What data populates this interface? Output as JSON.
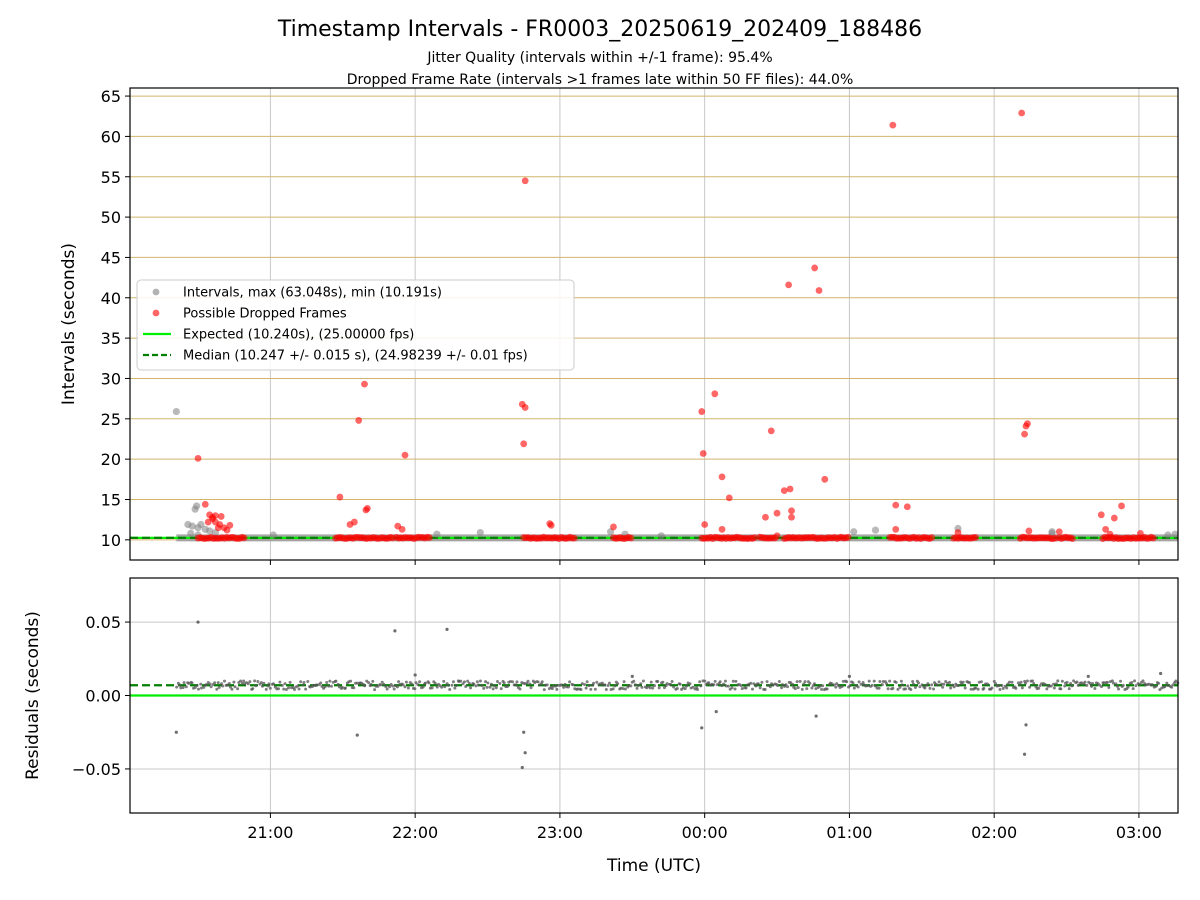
{
  "title": "Timestamp Intervals - FR0003_20250619_202409_188486",
  "subtitle_1": "Jitter Quality (intervals within +/-1 frame): 95.4%",
  "subtitle_2": "Dropped Frame Rate (intervals >1 frames late within 50 FF files): 44.0%",
  "colors": {
    "intervals": "#808080",
    "dropped": "#ff0000",
    "expected": "#00ee00",
    "median": "#007f00",
    "hgrid_top": "#d2b56b",
    "grid": "#c8c8c8"
  },
  "chart_data": [
    {
      "type": "scatter",
      "panel": "intervals",
      "ylabel": "Intervals (seconds)",
      "xlabel": "",
      "xlim": [
        20.03,
        27.27
      ],
      "ylim": [
        7.5,
        66.0
      ],
      "yticks": [
        10,
        15,
        20,
        25,
        30,
        35,
        40,
        45,
        50,
        55,
        60,
        65
      ],
      "grid": true,
      "legend_position": "center-left",
      "legend": [
        {
          "label": "Intervals, max (63.048s), min (10.191s)",
          "kind": "intervals"
        },
        {
          "label": "Possible Dropped Frames",
          "kind": "dropped"
        },
        {
          "label": "Expected (10.240s), (25.00000 fps)",
          "kind": "expected"
        },
        {
          "label": "Median (10.247 +/- 0.015 s), (24.98239 +/- 0.01 fps)",
          "kind": "median"
        }
      ],
      "expected_value": 10.24,
      "median_value": 10.247,
      "baseline_range": [
        20.03,
        27.27
      ],
      "series": [
        {
          "name": "Intervals, max (63.048s), min (10.191s)",
          "points": [
            [
              20.35,
              25.9
            ],
            [
              20.43,
              11.9
            ],
            [
              20.46,
              11.7
            ],
            [
              20.48,
              13.8
            ],
            [
              20.49,
              14.2
            ],
            [
              20.5,
              11.5
            ],
            [
              20.52,
              11.9
            ],
            [
              20.55,
              11.3
            ],
            [
              20.58,
              11.1
            ],
            [
              20.62,
              10.9
            ],
            [
              20.45,
              10.8
            ],
            [
              20.5,
              10.6
            ],
            [
              21.02,
              10.6
            ],
            [
              22.15,
              10.7
            ],
            [
              22.45,
              10.9
            ],
            [
              23.35,
              11.0
            ],
            [
              23.45,
              10.7
            ],
            [
              23.7,
              10.5
            ],
            [
              25.03,
              11.0
            ],
            [
              25.18,
              11.2
            ],
            [
              25.75,
              11.4
            ],
            [
              26.4,
              10.8
            ],
            [
              26.4,
              11.0
            ],
            [
              27.2,
              10.6
            ],
            [
              27.25,
              10.7
            ]
          ]
        },
        {
          "name": "Possible Dropped Frames",
          "points": [
            [
              20.5,
              20.1
            ],
            [
              20.55,
              14.4
            ],
            [
              20.57,
              12.2
            ],
            [
              20.58,
              13.1
            ],
            [
              20.6,
              12.8
            ],
            [
              20.62,
              12.2
            ],
            [
              20.64,
              11.5
            ],
            [
              20.66,
              12.9
            ],
            [
              20.68,
              11.5
            ],
            [
              20.7,
              11.2
            ],
            [
              20.72,
              11.8
            ],
            [
              20.6,
              12.6
            ],
            [
              20.62,
              13.0
            ],
            [
              20.65,
              11.9
            ],
            [
              21.48,
              15.3
            ],
            [
              21.55,
              11.9
            ],
            [
              21.58,
              12.2
            ],
            [
              21.61,
              24.8
            ],
            [
              21.65,
              29.3
            ],
            [
              21.66,
              13.7
            ],
            [
              21.67,
              13.9
            ],
            [
              21.88,
              11.7
            ],
            [
              21.91,
              11.3
            ],
            [
              21.93,
              20.5
            ],
            [
              22.74,
              26.8
            ],
            [
              22.76,
              26.4
            ],
            [
              22.75,
              21.9
            ],
            [
              22.76,
              54.5
            ],
            [
              22.93,
              12.0
            ],
            [
              22.94,
              11.8
            ],
            [
              23.37,
              11.6
            ],
            [
              23.98,
              25.9
            ],
            [
              23.99,
              20.7
            ],
            [
              24.0,
              11.9
            ],
            [
              24.07,
              28.1
            ],
            [
              24.12,
              17.8
            ],
            [
              24.17,
              15.2
            ],
            [
              24.12,
              11.3
            ],
            [
              24.42,
              12.8
            ],
            [
              24.46,
              23.5
            ],
            [
              24.5,
              13.3
            ],
            [
              24.5,
              10.5
            ],
            [
              24.55,
              16.1
            ],
            [
              24.58,
              41.6
            ],
            [
              24.59,
              16.3
            ],
            [
              24.6,
              13.6
            ],
            [
              24.6,
              12.8
            ],
            [
              24.76,
              43.7
            ],
            [
              24.79,
              40.9
            ],
            [
              24.83,
              17.5
            ],
            [
              25.3,
              61.4
            ],
            [
              25.32,
              14.3
            ],
            [
              25.32,
              11.3
            ],
            [
              25.4,
              14.1
            ],
            [
              25.75,
              10.9
            ],
            [
              26.19,
              62.9
            ],
            [
              26.21,
              23.1
            ],
            [
              26.22,
              24.1
            ],
            [
              26.23,
              24.4
            ],
            [
              26.24,
              11.1
            ],
            [
              26.45,
              11.0
            ],
            [
              26.74,
              13.1
            ],
            [
              26.77,
              11.3
            ],
            [
              26.8,
              10.7
            ],
            [
              26.83,
              12.7
            ],
            [
              26.88,
              14.2
            ],
            [
              27.01,
              10.8
            ]
          ],
          "dense_runs": [
            [
              20.5,
              20.83
            ],
            [
              21.45,
              21.85
            ],
            [
              21.87,
              22.1
            ],
            [
              22.75,
              23.1
            ],
            [
              23.37,
              23.5
            ],
            [
              23.98,
              24.35
            ],
            [
              24.38,
              24.5
            ],
            [
              24.55,
              25.0
            ],
            [
              25.28,
              25.58
            ],
            [
              25.72,
              25.88
            ],
            [
              26.18,
              26.43
            ],
            [
              26.45,
              26.55
            ],
            [
              26.75,
              27.1
            ]
          ],
          "dense_value": 10.24
        }
      ]
    },
    {
      "type": "scatter",
      "panel": "residuals",
      "ylabel": "Residuals (seconds)",
      "xlabel": "Time (UTC)",
      "xlim": [
        20.03,
        27.27
      ],
      "ylim": [
        -0.08,
        0.08
      ],
      "yticks": [
        -0.05,
        0.0,
        0.05
      ],
      "ytick_labels": [
        "−0.05",
        "0.00",
        "0.05"
      ],
      "xticks": [
        21,
        22,
        23,
        24,
        25,
        26,
        27
      ],
      "xtick_labels": [
        "21:00",
        "22:00",
        "23:00",
        "00:00",
        "01:00",
        "02:00",
        "03:00"
      ],
      "grid": true,
      "expected_value": 0.0,
      "median_value": 0.007,
      "band": {
        "range": [
          20.35,
          27.27
        ],
        "center": 0.007,
        "spread": 0.003
      },
      "outliers": [
        [
          20.35,
          -0.025
        ],
        [
          20.5,
          0.05
        ],
        [
          21.6,
          -0.027
        ],
        [
          21.86,
          0.044
        ],
        [
          22.22,
          0.045
        ],
        [
          22.75,
          -0.025
        ],
        [
          22.76,
          -0.039
        ],
        [
          22.74,
          -0.049
        ],
        [
          23.98,
          -0.022
        ],
        [
          24.08,
          -0.011
        ],
        [
          24.77,
          -0.014
        ],
        [
          26.22,
          -0.02
        ],
        [
          26.21,
          -0.04
        ],
        [
          22.0,
          0.014
        ],
        [
          23.5,
          0.013
        ],
        [
          25.0,
          0.013
        ],
        [
          26.65,
          0.013
        ],
        [
          27.15,
          0.015
        ]
      ]
    }
  ]
}
